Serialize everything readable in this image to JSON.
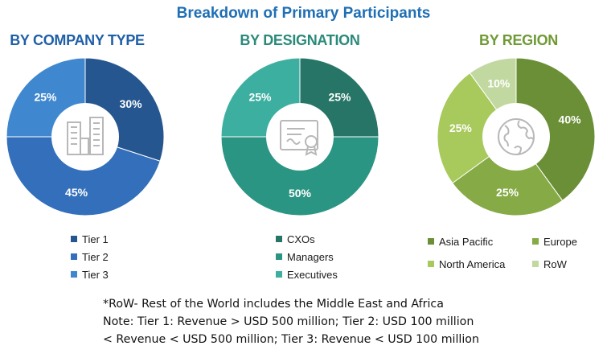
{
  "title": "Breakdown of Primary Participants",
  "chart_data": [
    {
      "type": "pie",
      "title": "BY COMPANY TYPE",
      "title_color": "#1f5fa8",
      "categories": [
        "Tier 1",
        "Tier 2",
        "Tier 3"
      ],
      "values": [
        30,
        45,
        25
      ],
      "colors": [
        "#26568f",
        "#336fba",
        "#3f88cf"
      ],
      "legend_position": "bottom"
    },
    {
      "type": "pie",
      "title": "BY DESIGNATION",
      "title_color": "#2a8a7a",
      "categories": [
        "CXOs",
        "Managers",
        "Executives"
      ],
      "values": [
        25,
        50,
        25
      ],
      "colors": [
        "#267566",
        "#2b9583",
        "#3dafa0"
      ],
      "legend_position": "bottom"
    },
    {
      "type": "pie",
      "title": "BY REGION",
      "title_color": "#6f9a35",
      "categories": [
        "Asia Pacific",
        "Europe",
        "North America",
        "RoW"
      ],
      "values": [
        40,
        25,
        25,
        10
      ],
      "colors": [
        "#6b8f37",
        "#86aa45",
        "#a8c95c",
        "#c2d8a1"
      ],
      "legend_position": "bottom"
    }
  ],
  "notes": {
    "line1": "*RoW- Rest of the World includes the Middle East and Africa",
    "line2": "Note: Tier 1: Revenue > USD 500 million; Tier 2: USD 100 million",
    "line3": "< Revenue < USD 500 million; Tier 3: Revenue < USD 100 million"
  },
  "icons": [
    "buildings-icon",
    "certificate-icon",
    "globe-icon"
  ]
}
